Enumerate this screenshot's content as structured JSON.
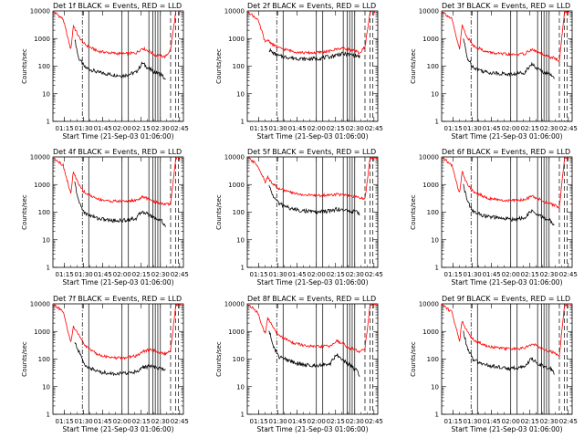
{
  "colors": {
    "events": "#000000",
    "lld": "#ff0000",
    "axis": "#000000",
    "background": "#ffffff"
  },
  "chart_data": [
    {
      "type": "line",
      "title": "Det 1f BLACK = Events, RED = LLD",
      "xlabel": "Start Time (21-Sep-03 01:06:00)",
      "ylabel": "Counts/sec",
      "yscale": "log",
      "ylim": [
        1,
        10000
      ],
      "xlim_minutes_after_start": [
        0,
        102
      ],
      "x_tick_labels": [
        "01:15",
        "01:30",
        "01:45",
        "02:00",
        "02:15",
        "02:30",
        "02:45"
      ],
      "y_tick_labels": [
        "1",
        "10",
        "100",
        "1000",
        "10000"
      ],
      "series": [
        {
          "name": "Events",
          "color": "#000000",
          "x": [
            17,
            20,
            25,
            35,
            45,
            55,
            65,
            70,
            75,
            80,
            85,
            88
          ],
          "values": [
            1000,
            200,
            90,
            60,
            50,
            45,
            60,
            130,
            80,
            60,
            50,
            30
          ]
        },
        {
          "name": "LLD",
          "color": "#ff0000",
          "x": [
            0,
            8,
            12,
            14,
            16,
            20,
            25,
            35,
            45,
            55,
            65,
            70,
            75,
            80,
            85,
            88,
            92,
            96,
            102
          ],
          "values": [
            10000,
            5000,
            900,
            400,
            3000,
            1200,
            600,
            350,
            300,
            280,
            300,
            450,
            350,
            250,
            230,
            220,
            400,
            9000,
            10000
          ]
        }
      ],
      "vertical_markers": {
        "solid": [
          28,
          54,
          59,
          75,
          78,
          80,
          82,
          84
        ],
        "dashdot": [
          23
        ],
        "dashed": [
          92,
          96,
          98
        ]
      }
    },
    {
      "type": "line",
      "title": "Det 2f BLACK = Events, RED = LLD",
      "xlabel": "Start Time (21-Sep-03 01:06:00)",
      "ylabel": "Counts/sec",
      "yscale": "log",
      "ylim": [
        1,
        10000
      ],
      "xlim_minutes_after_start": [
        0,
        102
      ],
      "x_tick_labels": [
        "01:15",
        "01:30",
        "01:45",
        "02:00",
        "02:15",
        "02:30",
        "02:45"
      ],
      "y_tick_labels": [
        "1",
        "10",
        "100",
        "1000",
        "10000"
      ],
      "series": [
        {
          "name": "Events",
          "color": "#000000",
          "x": [
            17,
            20,
            25,
            35,
            45,
            55,
            65,
            70,
            75,
            80,
            85,
            88
          ],
          "values": [
            400,
            300,
            230,
            200,
            180,
            190,
            220,
            260,
            280,
            260,
            240,
            220
          ]
        },
        {
          "name": "LLD",
          "color": "#ff0000",
          "x": [
            0,
            8,
            12,
            14,
            16,
            20,
            25,
            35,
            45,
            55,
            65,
            70,
            75,
            80,
            85,
            88,
            92,
            96,
            102
          ],
          "values": [
            10000,
            5000,
            1500,
            700,
            900,
            600,
            450,
            350,
            300,
            310,
            350,
            420,
            460,
            400,
            340,
            300,
            500,
            9000,
            10000
          ]
        }
      ],
      "vertical_markers": {
        "solid": [
          28,
          54,
          59,
          75,
          78,
          80,
          82,
          84
        ],
        "dashdot": [
          23
        ],
        "dashed": [
          92,
          96,
          98
        ]
      }
    },
    {
      "type": "line",
      "title": "Det 3f BLACK = Events, RED = LLD",
      "xlabel": "Start Time (21-Sep-03 01:06:00)",
      "ylabel": "Counts/sec",
      "yscale": "log",
      "ylim": [
        1,
        10000
      ],
      "xlim_minutes_after_start": [
        0,
        102
      ],
      "x_tick_labels": [
        "01:15",
        "01:30",
        "01:45",
        "02:00",
        "02:15",
        "02:30",
        "02:45"
      ],
      "y_tick_labels": [
        "1",
        "10",
        "100",
        "1000",
        "10000"
      ],
      "series": [
        {
          "name": "Events",
          "color": "#000000",
          "x": [
            17,
            20,
            25,
            35,
            45,
            55,
            65,
            70,
            75,
            80,
            85,
            88
          ],
          "values": [
            1000,
            200,
            90,
            60,
            55,
            50,
            60,
            120,
            80,
            60,
            50,
            40
          ]
        },
        {
          "name": "LLD",
          "color": "#ff0000",
          "x": [
            0,
            8,
            12,
            14,
            16,
            20,
            25,
            35,
            45,
            55,
            65,
            70,
            75,
            80,
            85,
            88,
            92,
            96,
            102
          ],
          "values": [
            10000,
            5000,
            900,
            400,
            3000,
            1100,
            550,
            330,
            280,
            260,
            280,
            400,
            330,
            240,
            210,
            200,
            150,
            9000,
            10000
          ]
        }
      ],
      "vertical_markers": {
        "solid": [
          28,
          54,
          59,
          75,
          78,
          80,
          82,
          84
        ],
        "dashdot": [
          23
        ],
        "dashed": [
          92,
          96,
          98
        ]
      }
    },
    {
      "type": "line",
      "title": "Det 4f BLACK = Events, RED = LLD",
      "xlabel": "Start Time (21-Sep-03 01:06:00)",
      "ylabel": "Counts/sec",
      "yscale": "log",
      "ylim": [
        1,
        10000
      ],
      "xlim_minutes_after_start": [
        0,
        102
      ],
      "x_tick_labels": [
        "01:15",
        "01:30",
        "01:45",
        "02:00",
        "02:15",
        "02:30",
        "02:45"
      ],
      "y_tick_labels": [
        "1",
        "10",
        "100",
        "1000",
        "10000"
      ],
      "series": [
        {
          "name": "Events",
          "color": "#000000",
          "x": [
            17,
            20,
            25,
            35,
            45,
            55,
            65,
            70,
            75,
            80,
            85,
            88
          ],
          "values": [
            1200,
            250,
            90,
            60,
            50,
            50,
            60,
            110,
            80,
            60,
            50,
            30
          ]
        },
        {
          "name": "LLD",
          "color": "#ff0000",
          "x": [
            0,
            8,
            12,
            14,
            16,
            20,
            25,
            35,
            45,
            55,
            65,
            70,
            75,
            80,
            85,
            88,
            92,
            96,
            102
          ],
          "values": [
            10000,
            5000,
            1000,
            450,
            3000,
            1000,
            500,
            300,
            250,
            250,
            270,
            350,
            300,
            230,
            210,
            190,
            200,
            9000,
            10000
          ]
        }
      ],
      "vertical_markers": {
        "solid": [
          28,
          54,
          59,
          75,
          78,
          80,
          82,
          84
        ],
        "dashdot": [
          23
        ],
        "dashed": [
          92,
          96,
          98
        ]
      }
    },
    {
      "type": "line",
      "title": "Det 5f BLACK = Events, RED = LLD",
      "xlabel": "Start Time (21-Sep-03 01:06:00)",
      "ylabel": "Counts/sec",
      "yscale": "log",
      "ylim": [
        1,
        10000
      ],
      "xlim_minutes_after_start": [
        0,
        102
      ],
      "x_tick_labels": [
        "01:15",
        "01:30",
        "01:45",
        "02:00",
        "02:15",
        "02:30",
        "02:45"
      ],
      "y_tick_labels": [
        "1",
        "10",
        "100",
        "1000",
        "10000"
      ],
      "series": [
        {
          "name": "Events",
          "color": "#000000",
          "x": [
            17,
            20,
            25,
            35,
            45,
            55,
            65,
            70,
            75,
            80,
            85,
            88
          ],
          "values": [
            900,
            400,
            200,
            130,
            110,
            100,
            110,
            130,
            120,
            110,
            100,
            90
          ]
        },
        {
          "name": "LLD",
          "color": "#ff0000",
          "x": [
            0,
            8,
            12,
            14,
            16,
            20,
            25,
            35,
            45,
            55,
            65,
            70,
            75,
            80,
            85,
            88,
            92,
            96,
            102
          ],
          "values": [
            10000,
            5000,
            2000,
            1200,
            1800,
            1100,
            700,
            500,
            420,
            400,
            420,
            450,
            420,
            380,
            350,
            330,
            300,
            9000,
            10000
          ]
        }
      ],
      "vertical_markers": {
        "solid": [
          28,
          54,
          59,
          75,
          78,
          80,
          82,
          84
        ],
        "dashdot": [
          23
        ],
        "dashed": [
          92,
          96,
          98
        ]
      }
    },
    {
      "type": "line",
      "title": "Det 6f BLACK = Events, RED = LLD",
      "xlabel": "Start Time (21-Sep-03 01:06:00)",
      "ylabel": "Counts/sec",
      "yscale": "log",
      "ylim": [
        1,
        10000
      ],
      "xlim_minutes_after_start": [
        0,
        102
      ],
      "x_tick_labels": [
        "01:15",
        "01:30",
        "01:45",
        "02:00",
        "02:15",
        "02:30",
        "02:45"
      ],
      "y_tick_labels": [
        "1",
        "10",
        "100",
        "1000",
        "10000"
      ],
      "series": [
        {
          "name": "Events",
          "color": "#000000",
          "x": [
            17,
            20,
            25,
            35,
            45,
            55,
            65,
            70,
            75,
            80,
            85,
            88
          ],
          "values": [
            1000,
            250,
            100,
            70,
            60,
            55,
            60,
            110,
            80,
            60,
            50,
            30
          ]
        },
        {
          "name": "LLD",
          "color": "#ff0000",
          "x": [
            0,
            8,
            12,
            14,
            16,
            20,
            25,
            35,
            45,
            55,
            65,
            70,
            75,
            80,
            85,
            88,
            92,
            96,
            102
          ],
          "values": [
            10000,
            5000,
            1000,
            500,
            3000,
            1000,
            550,
            330,
            270,
            260,
            280,
            380,
            320,
            240,
            200,
            180,
            140,
            9000,
            10000
          ]
        }
      ],
      "vertical_markers": {
        "solid": [
          28,
          54,
          59,
          75,
          78,
          80,
          82,
          84
        ],
        "dashdot": [
          23
        ],
        "dashed": [
          92,
          96,
          98
        ]
      }
    },
    {
      "type": "line",
      "title": "Det 7f BLACK = Events, RED = LLD",
      "xlabel": "Start Time (21-Sep-03 01:06:00)",
      "ylabel": "Counts/sec",
      "yscale": "log",
      "ylim": [
        1,
        10000
      ],
      "xlim_minutes_after_start": [
        0,
        102
      ],
      "x_tick_labels": [
        "01:15",
        "01:30",
        "01:45",
        "02:00",
        "02:15",
        "02:30",
        "02:45"
      ],
      "y_tick_labels": [
        "1",
        "10",
        "100",
        "1000",
        "10000"
      ],
      "series": [
        {
          "name": "Events",
          "color": "#000000",
          "x": [
            17,
            20,
            25,
            35,
            45,
            55,
            65,
            70,
            75,
            80,
            85,
            88
          ],
          "values": [
            400,
            200,
            60,
            35,
            30,
            30,
            35,
            50,
            55,
            50,
            45,
            40
          ]
        },
        {
          "name": "LLD",
          "color": "#ff0000",
          "x": [
            0,
            8,
            12,
            14,
            16,
            20,
            25,
            35,
            45,
            55,
            65,
            70,
            75,
            80,
            85,
            88,
            92,
            96,
            102
          ],
          "values": [
            10000,
            5000,
            900,
            400,
            1500,
            800,
            300,
            150,
            110,
            110,
            130,
            180,
            220,
            200,
            170,
            150,
            200,
            9000,
            10000
          ]
        }
      ],
      "vertical_markers": {
        "solid": [
          28,
          54,
          59,
          75,
          78,
          80,
          82,
          84
        ],
        "dashdot": [
          23
        ],
        "dashed": [
          92,
          96,
          98
        ]
      }
    },
    {
      "type": "line",
      "title": "Det 8f BLACK = Events, RED = LLD",
      "xlabel": "Start Time (21-Sep-03 01:06:00)",
      "ylabel": "Counts/sec",
      "yscale": "log",
      "ylim": [
        1,
        10000
      ],
      "xlim_minutes_after_start": [
        0,
        102
      ],
      "x_tick_labels": [
        "01:15",
        "01:30",
        "01:45",
        "02:00",
        "02:15",
        "02:30",
        "02:45"
      ],
      "y_tick_labels": [
        "1",
        "10",
        "100",
        "1000",
        "10000"
      ],
      "series": [
        {
          "name": "Events",
          "color": "#000000",
          "x": [
            17,
            20,
            25,
            35,
            45,
            55,
            65,
            70,
            75,
            80,
            85,
            88
          ],
          "values": [
            1200,
            300,
            120,
            80,
            60,
            60,
            70,
            150,
            90,
            60,
            40,
            25
          ]
        },
        {
          "name": "LLD",
          "color": "#ff0000",
          "x": [
            0,
            8,
            12,
            14,
            16,
            20,
            25,
            35,
            45,
            55,
            65,
            70,
            75,
            80,
            85,
            88,
            92,
            96,
            102
          ],
          "values": [
            10000,
            5000,
            1500,
            800,
            3000,
            1500,
            700,
            400,
            300,
            280,
            300,
            450,
            350,
            250,
            210,
            180,
            250,
            9000,
            10000
          ]
        }
      ],
      "vertical_markers": {
        "solid": [
          28,
          54,
          59,
          75,
          78,
          80,
          82,
          84
        ],
        "dashdot": [
          23
        ],
        "dashed": [
          92,
          96,
          98
        ]
      }
    },
    {
      "type": "line",
      "title": "Det 9f BLACK = Events, RED = LLD",
      "xlabel": "Start Time (21-Sep-03 01:06:00)",
      "ylabel": "Counts/sec",
      "yscale": "log",
      "ylim": [
        1,
        10000
      ],
      "xlim_minutes_after_start": [
        0,
        102
      ],
      "x_tick_labels": [
        "01:15",
        "01:30",
        "01:45",
        "02:00",
        "02:15",
        "02:30",
        "02:45"
      ],
      "y_tick_labels": [
        "1",
        "10",
        "100",
        "1000",
        "10000"
      ],
      "series": [
        {
          "name": "Events",
          "color": "#000000",
          "x": [
            17,
            20,
            25,
            35,
            45,
            55,
            65,
            70,
            75,
            80,
            85,
            88
          ],
          "values": [
            1000,
            250,
            90,
            60,
            50,
            45,
            55,
            100,
            70,
            55,
            45,
            30
          ]
        },
        {
          "name": "LLD",
          "color": "#ff0000",
          "x": [
            0,
            8,
            12,
            14,
            16,
            20,
            25,
            35,
            45,
            55,
            65,
            70,
            75,
            80,
            85,
            88,
            92,
            96,
            102
          ],
          "values": [
            10000,
            5000,
            1000,
            450,
            2500,
            1000,
            500,
            300,
            250,
            230,
            250,
            350,
            300,
            220,
            190,
            170,
            130,
            9000,
            10000
          ]
        }
      ],
      "vertical_markers": {
        "solid": [
          28,
          54,
          59,
          75,
          78,
          80,
          82,
          84
        ],
        "dashdot": [
          23
        ],
        "dashed": [
          92,
          96,
          98
        ]
      }
    }
  ]
}
